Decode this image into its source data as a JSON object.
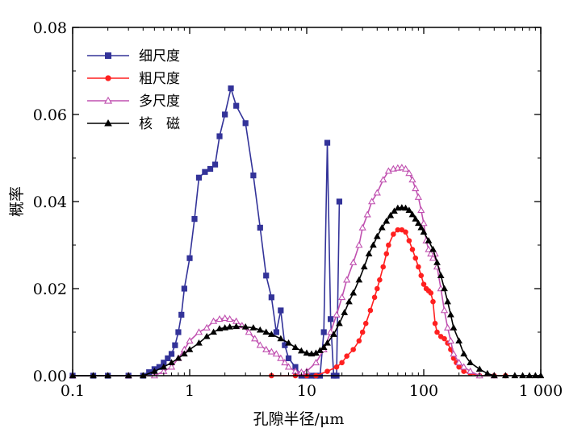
{
  "chart_data": {
    "type": "line",
    "xscale": "log",
    "xlim": [
      0.1,
      1000
    ],
    "ylim": [
      0,
      0.08
    ],
    "xlabel": "孔隙半径/μm",
    "ylabel": "概率",
    "x_ticks": [
      {
        "value": 0.1,
        "label": "0.1"
      },
      {
        "value": 1,
        "label": "1"
      },
      {
        "value": 10,
        "label": "10"
      },
      {
        "value": 100,
        "label": "100"
      },
      {
        "value": 1000,
        "label": "1 000"
      }
    ],
    "y_ticks": [
      {
        "value": 0,
        "label": "0.00"
      },
      {
        "value": 0.02,
        "label": "0.02"
      },
      {
        "value": 0.04,
        "label": "0.04"
      },
      {
        "value": 0.06,
        "label": "0.06"
      },
      {
        "value": 0.08,
        "label": "0.08"
      }
    ],
    "legend_position": "top-left",
    "series": [
      {
        "name": "细尺度",
        "color": "#333399",
        "marker": "square",
        "x": [
          0.1,
          0.15,
          0.2,
          0.3,
          0.4,
          0.45,
          0.5,
          0.55,
          0.6,
          0.65,
          0.7,
          0.75,
          0.8,
          0.85,
          0.9,
          1.0,
          1.1,
          1.2,
          1.35,
          1.5,
          1.65,
          1.8,
          2.0,
          2.25,
          2.5,
          3.0,
          3.5,
          4.0,
          4.5,
          5.0,
          5.5,
          6.0,
          6.5,
          7.0,
          8.0,
          9.0,
          10.0,
          11.0,
          12.0,
          13.0,
          14.0,
          15.0,
          16.0,
          17.0,
          18.0,
          19.0
        ],
        "y": [
          0,
          0,
          0,
          0,
          0,
          0.0008,
          0.0015,
          0.002,
          0.003,
          0.004,
          0.005,
          0.007,
          0.01,
          0.014,
          0.02,
          0.027,
          0.036,
          0.0455,
          0.0468,
          0.0475,
          0.0485,
          0.055,
          0.06,
          0.066,
          0.062,
          0.058,
          0.046,
          0.034,
          0.023,
          0.018,
          0.01,
          0.015,
          0.007,
          0.004,
          0.002,
          0,
          0,
          0,
          0,
          0,
          0.01,
          0.0535,
          0.013,
          0,
          0,
          0.04
        ]
      },
      {
        "name": "粗尺度",
        "color": "#ff2020",
        "marker": "circle",
        "x": [
          5,
          8,
          10,
          12,
          15,
          18,
          20,
          22,
          25,
          28,
          30,
          32,
          35,
          38,
          40,
          42,
          45,
          48,
          50,
          55,
          60,
          65,
          70,
          75,
          80,
          85,
          90,
          95,
          100,
          105,
          110,
          115,
          120,
          125,
          130,
          140,
          150,
          160,
          170,
          180,
          190,
          200,
          220,
          250,
          300,
          400,
          500
        ],
        "y": [
          0,
          0,
          0,
          0,
          0.001,
          0.002,
          0.003,
          0.0045,
          0.006,
          0.008,
          0.01,
          0.012,
          0.015,
          0.018,
          0.02,
          0.022,
          0.025,
          0.028,
          0.03,
          0.0325,
          0.0335,
          0.0335,
          0.033,
          0.031,
          0.029,
          0.027,
          0.025,
          0.023,
          0.021,
          0.02,
          0.0195,
          0.019,
          0.017,
          0.012,
          0.01,
          0.009,
          0.0085,
          0.0075,
          0.006,
          0.004,
          0.003,
          0.002,
          0.001,
          0.0005,
          0,
          0,
          0
        ]
      },
      {
        "name": "多尺度",
        "color": "#c050b0",
        "marker": "triangle-open",
        "x": [
          0.1,
          0.3,
          0.5,
          0.6,
          0.7,
          0.8,
          0.9,
          1.0,
          1.2,
          1.4,
          1.6,
          1.8,
          2.0,
          2.2,
          2.5,
          2.8,
          3.2,
          3.6,
          4.0,
          4.5,
          5.0,
          5.5,
          6.0,
          6.5,
          7.0,
          8.0,
          9.0,
          10.0,
          12.0,
          14.0,
          16.0,
          18.0,
          20.0,
          22.0,
          25.0,
          28.0,
          30.0,
          33.0,
          36.0,
          40.0,
          45.0,
          50.0,
          55.0,
          60.0,
          65.0,
          70.0,
          75.0,
          80.0,
          85.0,
          90.0,
          95.0,
          100.0,
          105.0,
          110.0,
          115.0,
          120.0,
          125.0,
          130.0,
          140.0,
          150.0,
          160.0,
          170.0,
          180.0,
          200.0,
          220.0,
          250.0,
          300.0,
          400.0
        ],
        "y": [
          0,
          0,
          0,
          0.001,
          0.002,
          0.004,
          0.006,
          0.008,
          0.01,
          0.011,
          0.0125,
          0.013,
          0.0132,
          0.013,
          0.0125,
          0.0115,
          0.01,
          0.0085,
          0.007,
          0.006,
          0.0055,
          0.005,
          0.004,
          0.003,
          0.002,
          0.001,
          0.0008,
          0.001,
          0.003,
          0.006,
          0.01,
          0.014,
          0.018,
          0.022,
          0.026,
          0.03,
          0.034,
          0.037,
          0.04,
          0.042,
          0.045,
          0.047,
          0.0475,
          0.0477,
          0.0478,
          0.0475,
          0.0465,
          0.045,
          0.043,
          0.041,
          0.038,
          0.035,
          0.031,
          0.029,
          0.028,
          0.027,
          0.028,
          0.025,
          0.02,
          0.015,
          0.011,
          0.008,
          0.005,
          0.003,
          0.002,
          0.001,
          0,
          0
        ]
      },
      {
        "name": "核　磁",
        "color": "#000000",
        "marker": "triangle",
        "x": [
          0.1,
          0.15,
          0.2,
          0.3,
          0.4,
          0.5,
          0.6,
          0.7,
          0.8,
          0.9,
          1.0,
          1.2,
          1.4,
          1.6,
          1.8,
          2.0,
          2.2,
          2.5,
          3.0,
          3.5,
          4.0,
          4.5,
          5.0,
          6.0,
          7.0,
          8.0,
          9.0,
          10.0,
          11.0,
          12.0,
          13.0,
          14.0,
          15.0,
          17.0,
          19.0,
          21.0,
          23.0,
          25.0,
          28.0,
          31.0,
          34.0,
          37.0,
          40.0,
          44.0,
          48.0,
          52.0,
          56.0,
          60.0,
          65.0,
          70.0,
          75.0,
          80.0,
          85.0,
          90.0,
          95.0,
          100.0,
          110.0,
          120.0,
          130.0,
          140.0,
          150.0,
          160.0,
          170.0,
          180.0,
          200.0,
          220.0,
          250.0,
          300.0,
          350.0,
          400.0,
          500.0,
          600.0,
          700.0,
          800.0,
          900.0,
          1000.0
        ],
        "y": [
          0,
          0,
          0,
          0,
          0,
          0.001,
          0.002,
          0.003,
          0.004,
          0.005,
          0.006,
          0.0075,
          0.009,
          0.01,
          0.0108,
          0.011,
          0.0112,
          0.0113,
          0.0112,
          0.011,
          0.0105,
          0.01,
          0.0095,
          0.0085,
          0.0075,
          0.0065,
          0.0057,
          0.0052,
          0.005,
          0.0052,
          0.0058,
          0.0065,
          0.0075,
          0.0095,
          0.012,
          0.0145,
          0.017,
          0.019,
          0.022,
          0.025,
          0.028,
          0.03,
          0.032,
          0.034,
          0.0355,
          0.0368,
          0.0378,
          0.0385,
          0.0386,
          0.0385,
          0.038,
          0.037,
          0.036,
          0.035,
          0.034,
          0.033,
          0.031,
          0.029,
          0.026,
          0.023,
          0.02,
          0.017,
          0.014,
          0.011,
          0.008,
          0.005,
          0.003,
          0.0015,
          0.0005,
          0,
          0,
          0,
          0,
          0,
          0,
          0
        ]
      }
    ]
  }
}
